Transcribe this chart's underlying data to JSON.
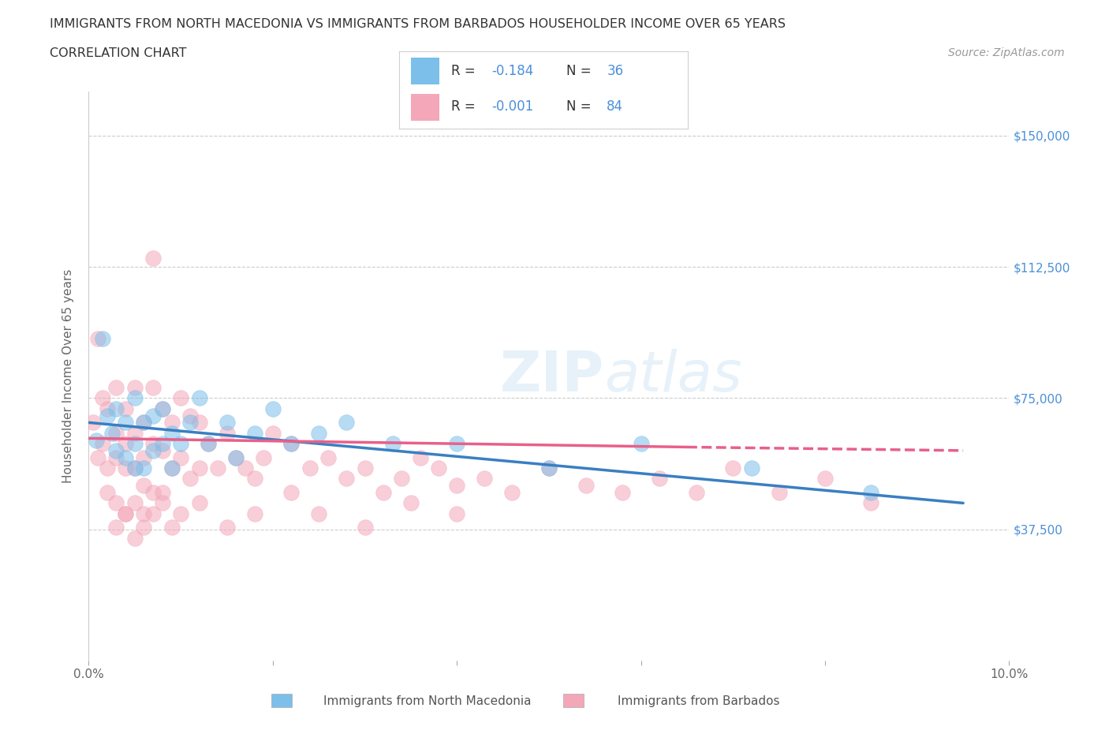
{
  "title_line1": "IMMIGRANTS FROM NORTH MACEDONIA VS IMMIGRANTS FROM BARBADOS HOUSEHOLDER INCOME OVER 65 YEARS",
  "title_line2": "CORRELATION CHART",
  "source_text": "Source: ZipAtlas.com",
  "ylabel": "Householder Income Over 65 years",
  "xlim": [
    0.0,
    0.1
  ],
  "ylim": [
    0,
    162500
  ],
  "yticks": [
    0,
    37500,
    75000,
    112500,
    150000
  ],
  "ytick_labels": [
    "",
    "$37,500",
    "$75,000",
    "$112,500",
    "$150,000"
  ],
  "xticks": [
    0.0,
    0.02,
    0.04,
    0.06,
    0.08,
    0.1
  ],
  "xtick_labels": [
    "0.0%",
    "",
    "",
    "",
    "",
    "10.0%"
  ],
  "legend_r1": "R = -0.184",
  "legend_n1": "N = 36",
  "legend_r2": "R = -0.001",
  "legend_n2": "N = 84",
  "color_macedonia": "#7bbfea",
  "color_barbados": "#f4a7b9",
  "color_line_macedonia": "#3a7fc1",
  "color_line_barbados": "#e8608a",
  "watermark": "ZIPatlas",
  "background_color": "#ffffff",
  "north_macedonia_x": [
    0.0008,
    0.0015,
    0.002,
    0.0025,
    0.003,
    0.003,
    0.004,
    0.004,
    0.005,
    0.005,
    0.005,
    0.006,
    0.006,
    0.007,
    0.007,
    0.008,
    0.008,
    0.009,
    0.009,
    0.01,
    0.011,
    0.012,
    0.013,
    0.015,
    0.016,
    0.018,
    0.02,
    0.022,
    0.025,
    0.028,
    0.033,
    0.04,
    0.05,
    0.06,
    0.072,
    0.085
  ],
  "north_macedonia_y": [
    63000,
    92000,
    70000,
    65000,
    60000,
    72000,
    68000,
    58000,
    75000,
    62000,
    55000,
    68000,
    55000,
    70000,
    60000,
    72000,
    62000,
    65000,
    55000,
    62000,
    68000,
    75000,
    62000,
    68000,
    58000,
    65000,
    72000,
    62000,
    65000,
    68000,
    62000,
    62000,
    55000,
    62000,
    55000,
    48000
  ],
  "barbados_x": [
    0.0005,
    0.001,
    0.001,
    0.0015,
    0.0015,
    0.002,
    0.002,
    0.002,
    0.003,
    0.003,
    0.003,
    0.003,
    0.004,
    0.004,
    0.004,
    0.004,
    0.005,
    0.005,
    0.005,
    0.005,
    0.006,
    0.006,
    0.006,
    0.006,
    0.007,
    0.007,
    0.007,
    0.007,
    0.008,
    0.008,
    0.008,
    0.009,
    0.009,
    0.01,
    0.01,
    0.011,
    0.011,
    0.012,
    0.012,
    0.013,
    0.014,
    0.015,
    0.016,
    0.017,
    0.018,
    0.019,
    0.02,
    0.022,
    0.024,
    0.026,
    0.028,
    0.03,
    0.032,
    0.034,
    0.036,
    0.038,
    0.04,
    0.043,
    0.046,
    0.05,
    0.054,
    0.058,
    0.062,
    0.066,
    0.07,
    0.075,
    0.08,
    0.085,
    0.003,
    0.004,
    0.005,
    0.006,
    0.007,
    0.008,
    0.009,
    0.01,
    0.012,
    0.015,
    0.018,
    0.022,
    0.025,
    0.03,
    0.035,
    0.04
  ],
  "barbados_y": [
    68000,
    92000,
    58000,
    75000,
    62000,
    72000,
    55000,
    48000,
    78000,
    65000,
    58000,
    45000,
    72000,
    62000,
    55000,
    42000,
    78000,
    65000,
    55000,
    45000,
    68000,
    58000,
    50000,
    42000,
    115000,
    78000,
    62000,
    48000,
    72000,
    60000,
    48000,
    68000,
    55000,
    75000,
    58000,
    70000,
    52000,
    68000,
    55000,
    62000,
    55000,
    65000,
    58000,
    55000,
    52000,
    58000,
    65000,
    62000,
    55000,
    58000,
    52000,
    55000,
    48000,
    52000,
    58000,
    55000,
    50000,
    52000,
    48000,
    55000,
    50000,
    48000,
    52000,
    48000,
    55000,
    48000,
    52000,
    45000,
    38000,
    42000,
    35000,
    38000,
    42000,
    45000,
    38000,
    42000,
    45000,
    38000,
    42000,
    48000,
    42000,
    38000,
    45000,
    42000
  ]
}
